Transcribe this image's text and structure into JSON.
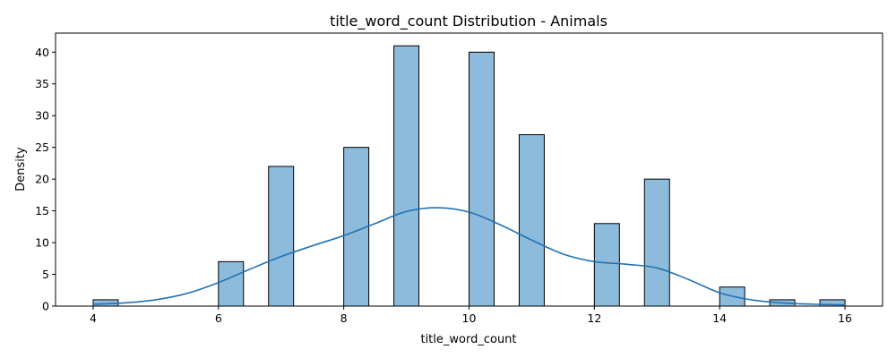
{
  "chart_data": {
    "type": "bar",
    "title": "title_word_count Distribution - Animals",
    "xlabel": "title_word_count",
    "ylabel": "Density",
    "xlim": [
      3.4,
      16.6
    ],
    "ylim": [
      0,
      43
    ],
    "x_ticks": [
      4,
      6,
      8,
      10,
      12,
      14,
      16
    ],
    "y_ticks": [
      0,
      5,
      10,
      15,
      20,
      25,
      30,
      35,
      40
    ],
    "bin_width": 0.4,
    "bars": [
      {
        "x_start": 4.0,
        "value": 1
      },
      {
        "x_start": 6.0,
        "value": 7
      },
      {
        "x_start": 6.8,
        "value": 22
      },
      {
        "x_start": 8.0,
        "value": 25
      },
      {
        "x_start": 8.8,
        "value": 41
      },
      {
        "x_start": 10.0,
        "value": 40
      },
      {
        "x_start": 10.8,
        "value": 27
      },
      {
        "x_start": 12.0,
        "value": 13
      },
      {
        "x_start": 12.8,
        "value": 20
      },
      {
        "x_start": 14.0,
        "value": 3
      },
      {
        "x_start": 14.8,
        "value": 1
      },
      {
        "x_start": 15.6,
        "value": 1
      }
    ],
    "kde_curve": {
      "x": [
        4.0,
        4.5,
        5.0,
        5.5,
        6.0,
        6.5,
        7.0,
        7.5,
        8.0,
        8.5,
        9.0,
        9.5,
        10.0,
        10.5,
        11.0,
        11.5,
        12.0,
        12.5,
        13.0,
        13.5,
        14.0,
        14.5,
        15.0,
        15.5,
        16.0
      ],
      "y": [
        0.3,
        0.5,
        1.0,
        2.0,
        3.7,
        5.8,
        7.8,
        9.5,
        11.1,
        13.0,
        14.9,
        15.5,
        14.8,
        12.8,
        10.4,
        8.2,
        7.0,
        6.6,
        6.0,
        4.2,
        2.1,
        1.0,
        0.5,
        0.3,
        0.2
      ]
    },
    "colors": {
      "bar_fill": "#8dbbdc",
      "bar_edge": "#000000",
      "kde_line": "#2272b4"
    },
    "grid": false,
    "legend": "none"
  }
}
